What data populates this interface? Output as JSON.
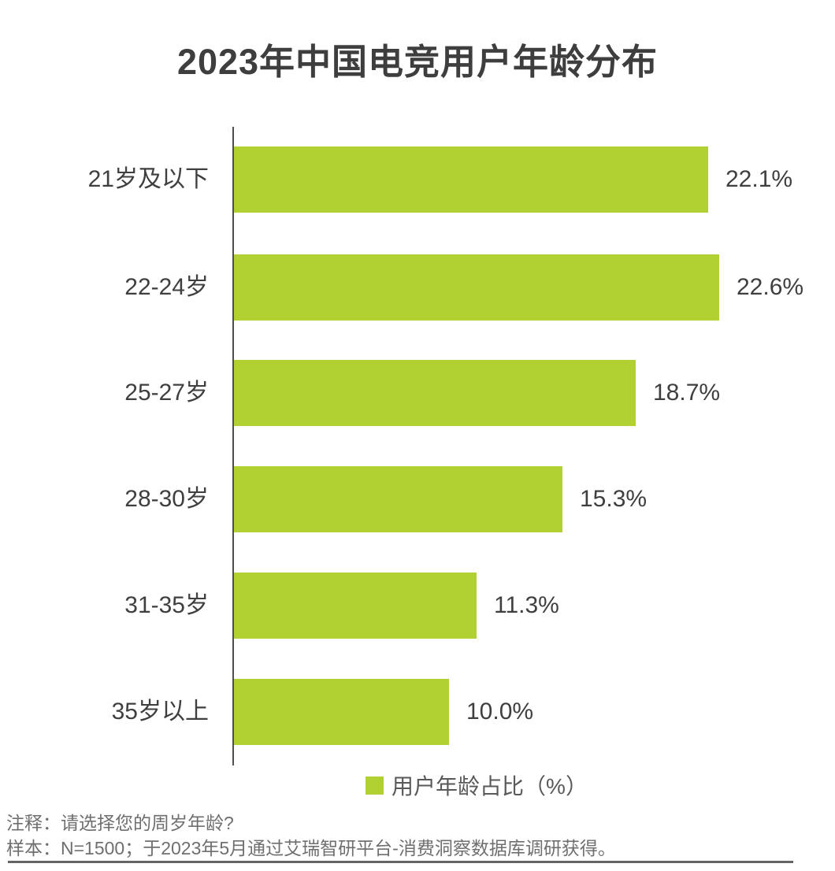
{
  "title": "2023年中国电竞用户年龄分布",
  "legend": {
    "swatch_color": "#b1d133",
    "label": "用户年龄占比（%）"
  },
  "footer": {
    "note": "注释：请选择您的周岁年龄?",
    "sample": "样本：N=1500；于2023年5月通过艾瑞智研平台-消费洞察数据库调研获得。"
  },
  "colors": {
    "bar": "#b1d133",
    "axis": "#4f4f4f",
    "title_text": "#3e3e3e",
    "label_text": "#3f3f3f",
    "legend_text": "#595959",
    "note_text": "#6f6f6f"
  },
  "chart_data": {
    "type": "bar",
    "orientation": "horizontal",
    "title": "2023年中国电竞用户年龄分布",
    "series_name": "用户年龄占比（%）",
    "categories": [
      "21岁及以下",
      "22-24岁",
      "25-27岁",
      "28-30岁",
      "31-35岁",
      "35岁以上"
    ],
    "values": [
      22.1,
      22.6,
      18.7,
      15.3,
      11.3,
      10.0
    ],
    "value_labels": [
      "22.1%",
      "22.6%",
      "18.7%",
      "15.3%",
      "11.3%",
      "10.0%"
    ],
    "xlim": [
      0,
      24
    ],
    "grid": false,
    "legend_position": "bottom",
    "xlabel": "",
    "ylabel": ""
  }
}
